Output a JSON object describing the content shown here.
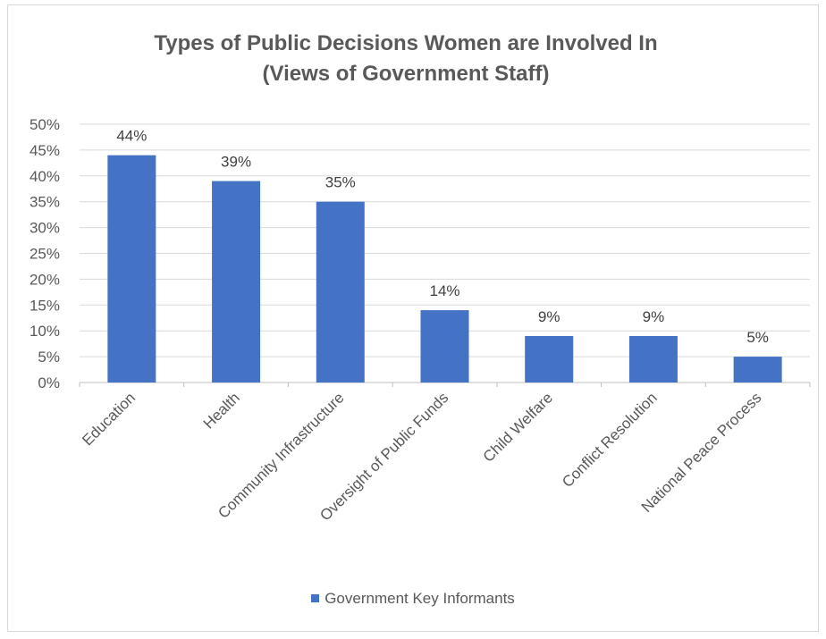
{
  "chart_data": {
    "type": "bar",
    "title_line1": "Types of Public Decisions Women are Involved In",
    "title_line2": "(Views of Government Staff)",
    "categories": [
      "Education",
      "Health",
      "Community Infrastructure",
      "Oversight of Public Funds",
      "Child Welfare",
      "Conflict Resolution",
      "National Peace Process"
    ],
    "series": [
      {
        "name": "Government Key Informants",
        "values": [
          44,
          39,
          35,
          14,
          9,
          9,
          5
        ],
        "labels": [
          "44%",
          "39%",
          "35%",
          "14%",
          "9%",
          "9%",
          "5%"
        ],
        "color": "#4472c4"
      }
    ],
    "ylim": [
      0,
      50
    ],
    "yticks": [
      "0%",
      "5%",
      "10%",
      "15%",
      "20%",
      "25%",
      "30%",
      "35%",
      "40%",
      "45%",
      "50%"
    ],
    "grid": true,
    "legend_position": "bottom"
  }
}
